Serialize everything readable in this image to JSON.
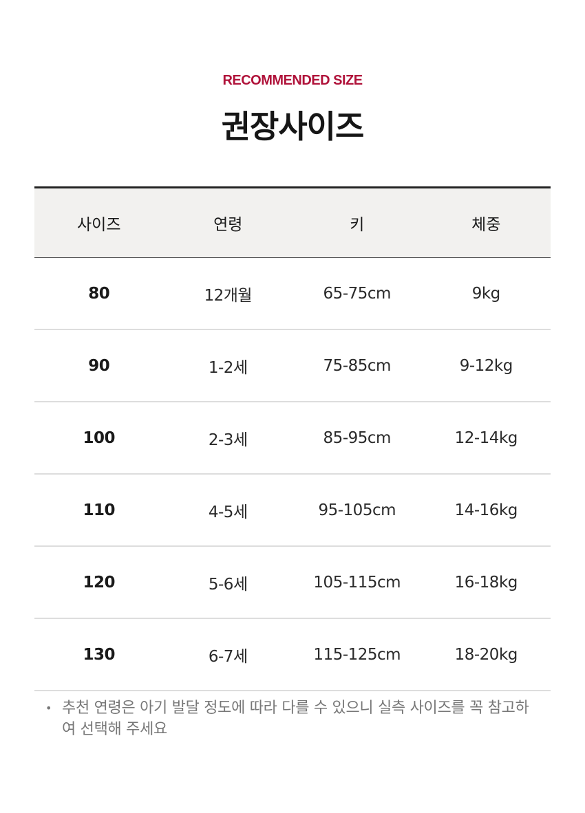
{
  "header": {
    "eyebrow": "RECOMMENDED SIZE",
    "title": "권장사이즈",
    "accent_color": "#b0123a"
  },
  "table": {
    "columns": [
      "사이즈",
      "연령",
      "키",
      "체중"
    ],
    "rows": [
      [
        "80",
        "12개월",
        "65-75cm",
        "9kg"
      ],
      [
        "90",
        "1-2세",
        "75-85cm",
        "9-12kg"
      ],
      [
        "100",
        "2-3세",
        "85-95cm",
        "12-14kg"
      ],
      [
        "110",
        "4-5세",
        "95-105cm",
        "14-16kg"
      ],
      [
        "120",
        "5-6세",
        "105-115cm",
        "16-18kg"
      ],
      [
        "130",
        "6-7세",
        "115-125cm",
        "18-20kg"
      ]
    ]
  },
  "note": {
    "bullet": "•",
    "text": "추천 연령은 아기 발달 정도에 따라 다를 수 있으니 실측 사이즈를 꼭 참고하여 선택해 주세요"
  }
}
